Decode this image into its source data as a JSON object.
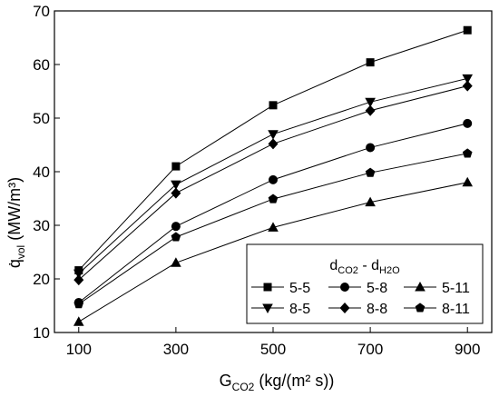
{
  "chart_data": {
    "type": "line",
    "title": "",
    "xlabel": {
      "main": "G",
      "sub": "CO2",
      "rest": " (kg/(m² s))"
    },
    "ylabel": {
      "main": "q̇",
      "sub": "vol",
      "rest": " (MW/m³)"
    },
    "xlim": [
      50,
      950
    ],
    "ylim": [
      10,
      70
    ],
    "x": [
      100,
      300,
      500,
      700,
      900
    ],
    "xticks": [
      100,
      300,
      500,
      700,
      900
    ],
    "yticks": [
      10,
      20,
      30,
      40,
      50,
      60,
      70
    ],
    "grid": false,
    "legend": {
      "placement": "lower-right",
      "title": {
        "a": "d",
        "a_sub": "CO2",
        "mid": " - d",
        "b_sub": "H2O"
      }
    },
    "series": [
      {
        "name": "5-5",
        "marker": "square",
        "values": [
          21.6,
          41.0,
          52.4,
          60.4,
          66.4
        ]
      },
      {
        "name": "5-8",
        "marker": "circle",
        "values": [
          15.6,
          29.8,
          38.5,
          44.5,
          49.0
        ]
      },
      {
        "name": "5-11",
        "marker": "triangle",
        "values": [
          12.0,
          23.0,
          29.6,
          34.3,
          38.0
        ]
      },
      {
        "name": "8-5",
        "marker": "tri-down",
        "values": [
          21.0,
          37.6,
          47.0,
          53.0,
          57.4
        ]
      },
      {
        "name": "8-8",
        "marker": "diamond",
        "values": [
          19.8,
          36.0,
          45.2,
          51.4,
          56.0
        ]
      },
      {
        "name": "8-11",
        "marker": "pentagon",
        "values": [
          15.3,
          27.8,
          34.9,
          39.8,
          43.4
        ]
      }
    ]
  }
}
